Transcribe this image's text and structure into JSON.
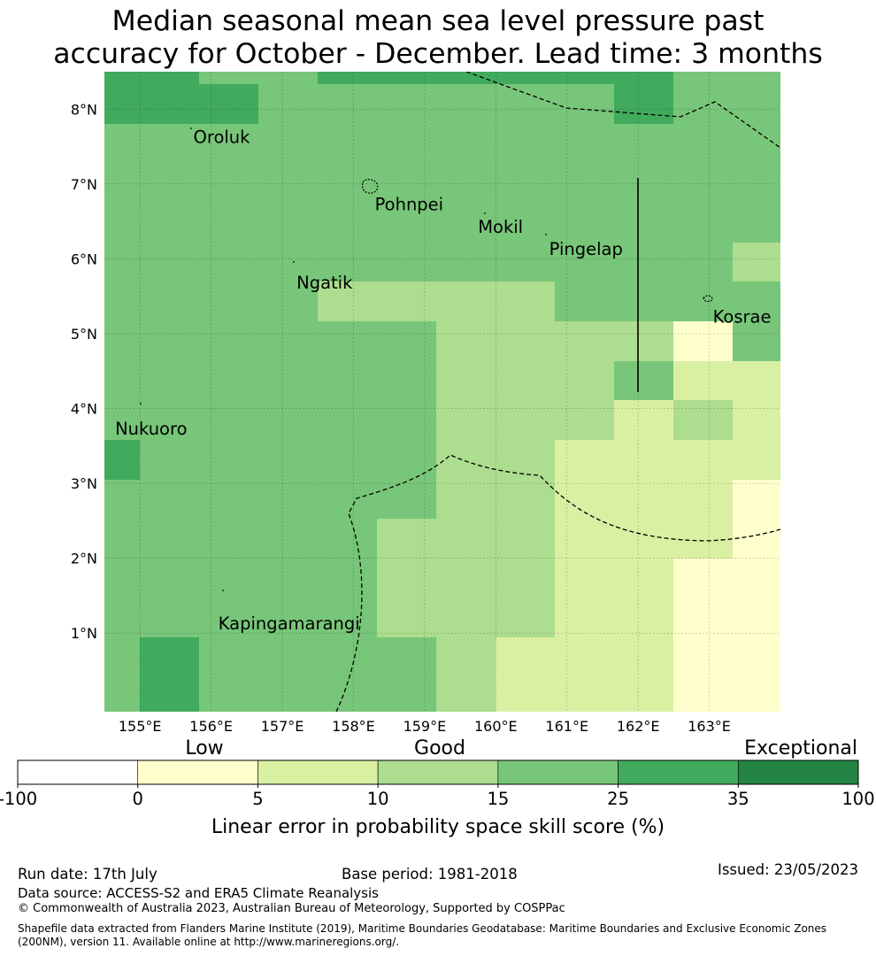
{
  "title_line1": "Median seasonal mean sea level pressure past",
  "title_line2": "accuracy for October - December. Lead time: 3 months",
  "map": {
    "lon_range": [
      154.5,
      164.0
    ],
    "lat_range": [
      -0.05,
      8.5
    ],
    "lon_ticks": [
      "155°E",
      "156°E",
      "157°E",
      "158°E",
      "159°E",
      "160°E",
      "161°E",
      "162°E",
      "163°E"
    ],
    "lat_ticks": [
      "1°N",
      "2°N",
      "3°N",
      "4°N",
      "5°N",
      "6°N",
      "7°N",
      "8°N"
    ],
    "places": [
      {
        "name": "Oroluk",
        "lon": 155.75,
        "lat": 7.55
      },
      {
        "name": "Pohnpei",
        "lon": 158.3,
        "lat": 6.65
      },
      {
        "name": "Mokil",
        "lon": 159.75,
        "lat": 6.35
      },
      {
        "name": "Pingelap",
        "lon": 160.75,
        "lat": 6.05
      },
      {
        "name": "Ngatik",
        "lon": 157.2,
        "lat": 5.6
      },
      {
        "name": "Kosrae",
        "lon": 163.05,
        "lat": 5.15
      },
      {
        "name": "Nukuoro",
        "lon": 154.65,
        "lat": 3.65
      },
      {
        "name": "Kapingamarangi",
        "lon": 156.1,
        "lat": 1.05
      }
    ]
  },
  "legend": {
    "category_low": "Low",
    "category_good": "Good",
    "category_exceptional": "Exceptional",
    "ticks": [
      "-100",
      "0",
      "5",
      "10",
      "15",
      "25",
      "35",
      "100"
    ],
    "colors": [
      "#ffffff",
      "#ffffcc",
      "#d9f0a3",
      "#addd8e",
      "#78c679",
      "#41ab5d",
      "#238443"
    ],
    "label": "Linear error in probability space skill score (%)"
  },
  "footer": {
    "run_date": "Run date: 17th July",
    "base_period": "Base period: 1981-2018",
    "issued": "Issued: 23/05/2023",
    "data_source": "Data source: ACCESS-S2 and ERA5 Climate Reanalysis",
    "copyright": "© Commonwealth of Australia 2023, Australian Bureau of Meteorology, Supported by COSPPac",
    "shapefile": "Shapefile data extracted from Flanders Marine Institute (2019), Maritime Boundaries Geodatabase: Maritime Boundaries and Exclusive Economic Zones (200NM), version 11. Available online at http://www.marineregions.org/."
  }
}
